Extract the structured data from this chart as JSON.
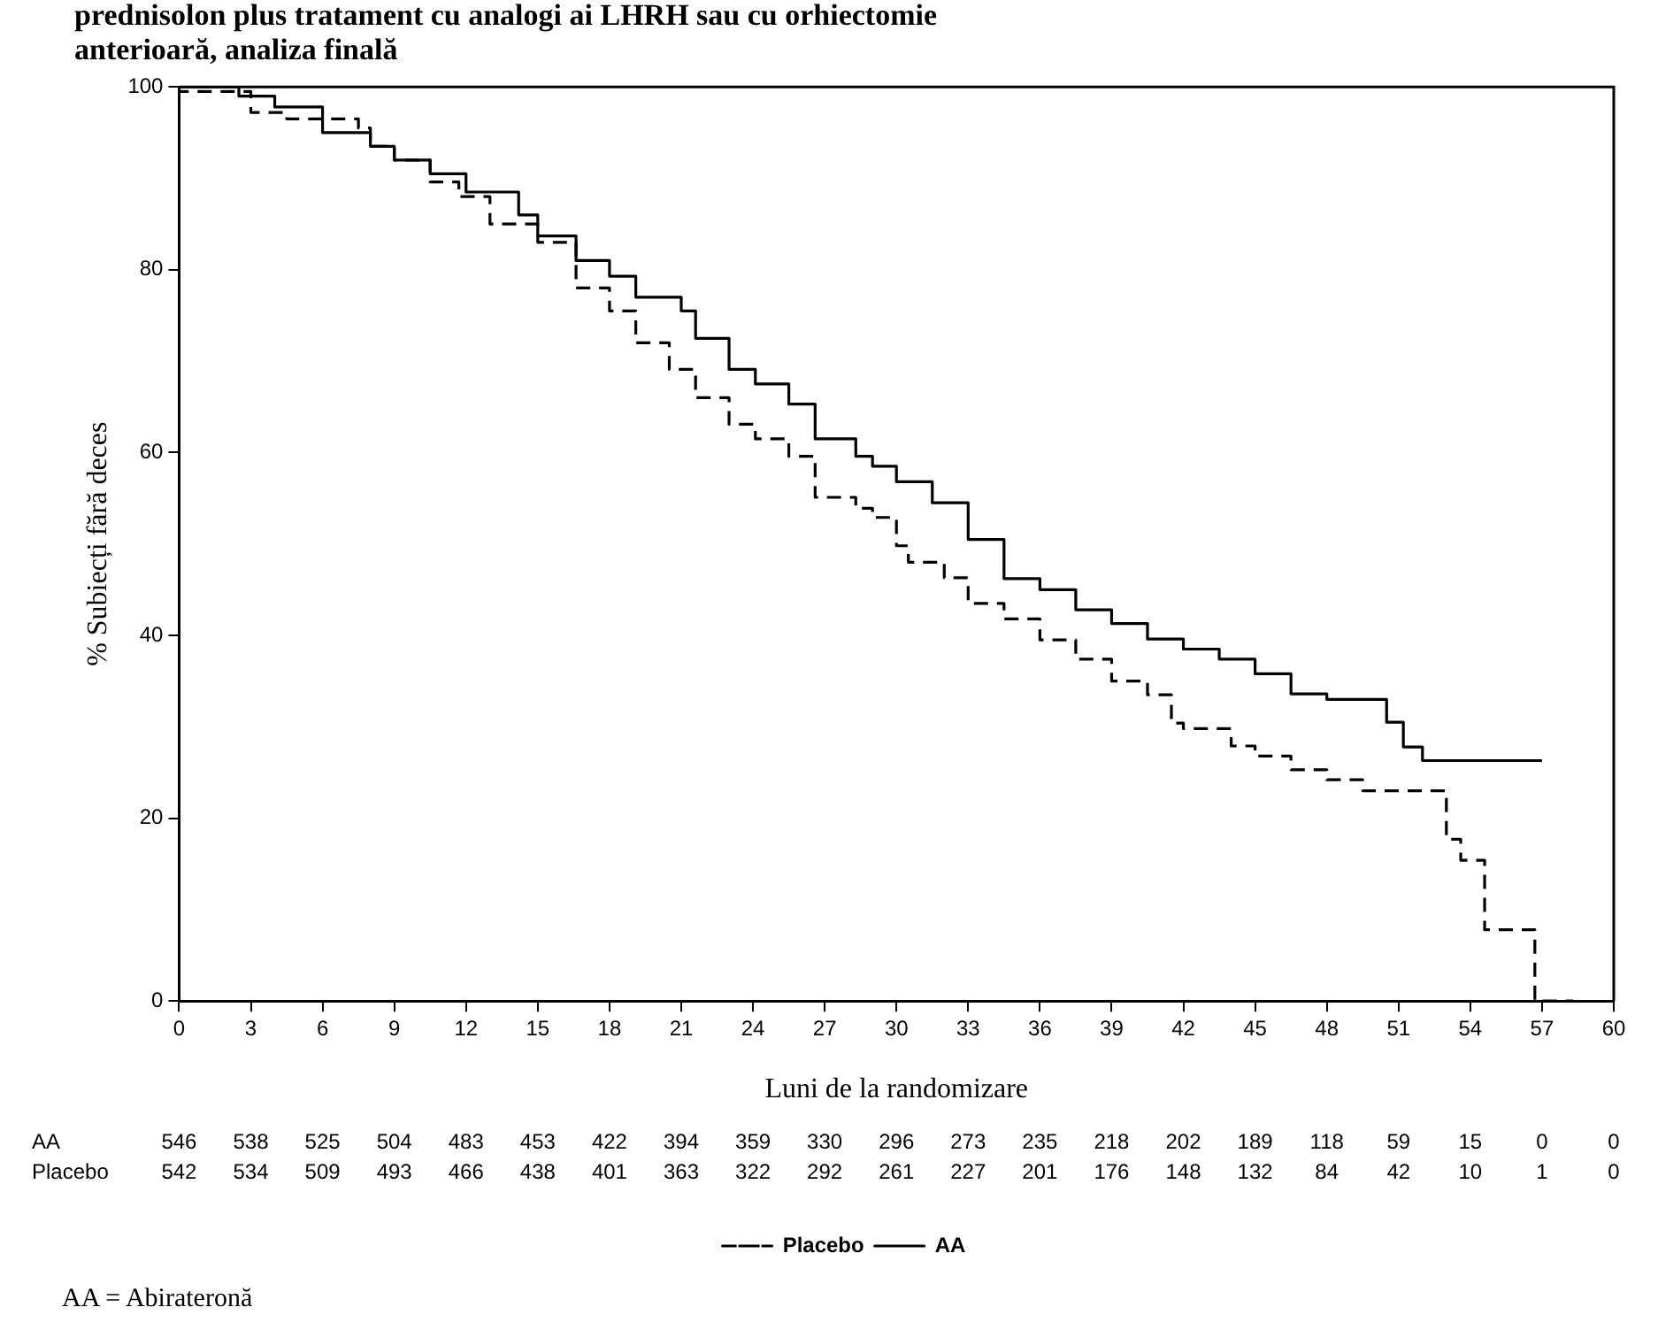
{
  "chart_data": {
    "type": "step",
    "title": [
      "prednisolon plus tratament cu analogi ai LHRH sau cu orhiectomie",
      "anterioară, analiza finală"
    ],
    "xlabel": "Luni de la randomizare",
    "ylabel": "% Subiecți fără deces",
    "xlim": [
      0,
      60
    ],
    "xticks": [
      0,
      3,
      6,
      9,
      12,
      15,
      18,
      21,
      24,
      27,
      30,
      33,
      36,
      39,
      42,
      45,
      48,
      51,
      54,
      57,
      60
    ],
    "ylim": [
      0,
      100
    ],
    "yticks": [
      0,
      20,
      40,
      60,
      80,
      100
    ],
    "grid": false,
    "legend": "bottom",
    "marker": "none",
    "series": [
      {
        "name": "Placebo",
        "color": "#000000",
        "line_style": "dashed",
        "x": [
          0,
          3,
          4.5,
          7.5,
          8,
          9,
          10.5,
          11.7,
          13,
          15,
          16.6,
          18,
          19.1,
          20.5,
          21.6,
          23,
          24.1,
          25.5,
          26.6,
          28.3,
          29,
          30,
          30.5,
          32,
          33,
          34.5,
          36,
          37.5,
          39,
          40.5,
          41.5,
          42,
          44,
          45,
          46.5,
          48,
          49.5,
          51,
          53,
          53.6,
          54.6,
          56.7,
          58.3
        ],
        "values": [
          100,
          99.5,
          97.2,
          96.5,
          95.5,
          93.5,
          92,
          89.6,
          88,
          85,
          83,
          78,
          75.5,
          72,
          69.1,
          66,
          63.1,
          61.5,
          59.6,
          55.1,
          53.9,
          52.9,
          49.8,
          48,
          46.3,
          43.5,
          41.8,
          39.5,
          37.4,
          35,
          33.5,
          30.4,
          29.8,
          27.9,
          26.8,
          25.3,
          24.2,
          23,
          23,
          17.7,
          15.4,
          7.8,
          0
        ]
      },
      {
        "name": "AA",
        "color": "#000000",
        "line_style": "solid",
        "x": [
          0,
          2.5,
          4,
          6,
          8,
          9,
          10.5,
          12,
          14.2,
          15,
          16.6,
          18,
          19.1,
          21,
          21.6,
          23,
          24.1,
          25.5,
          26.6,
          28.3,
          29,
          30,
          31.5,
          33,
          34.5,
          36,
          37.5,
          39,
          40.5,
          42,
          43.5,
          45,
          46.5,
          48,
          50.5,
          51.2,
          52,
          53.7,
          57
        ],
        "values": [
          100,
          100,
          99,
          97.8,
          95,
          93.5,
          92,
          90.5,
          88.5,
          86,
          83.7,
          81,
          79.3,
          77,
          75.5,
          72.5,
          69.1,
          67.5,
          65.3,
          61.5,
          59.6,
          58.5,
          56.8,
          54.5,
          50.5,
          46.2,
          45,
          42.8,
          41.3,
          39.6,
          38.5,
          37.4,
          35.8,
          33.6,
          33,
          30.5,
          27.8,
          26.3,
          26.3
        ]
      }
    ],
    "annotations": [
      "AA",
      "546",
      "538",
      "525",
      "504",
      "483",
      "453",
      "422",
      "394",
      "359",
      "330",
      "296",
      "273",
      "235",
      "218",
      "202",
      "189",
      "118",
      "59",
      "15",
      "0",
      "0",
      "Placebo",
      "542",
      "534",
      "509",
      "493",
      "466",
      "438",
      "401",
      "363",
      "322",
      "292",
      "261",
      "227",
      "201",
      "176",
      "148",
      "132",
      "84",
      "42",
      "10",
      "1",
      "0",
      "AA = Abirateronă"
    ]
  }
}
